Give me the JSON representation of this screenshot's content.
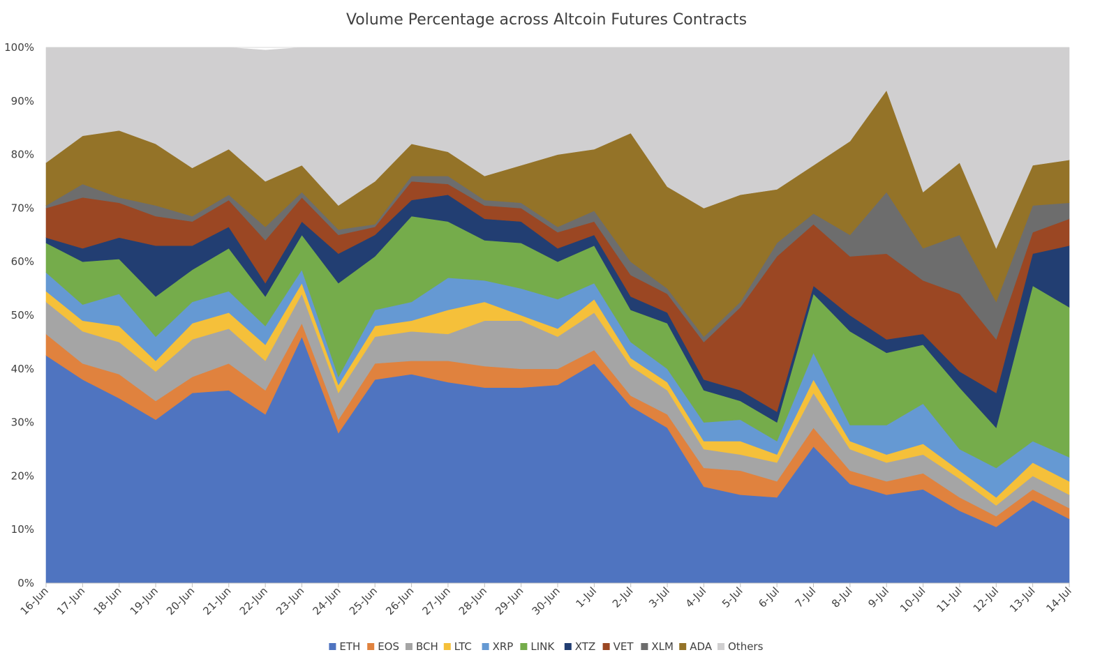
{
  "chart_data": {
    "type": "area",
    "stacked": true,
    "title": "Volume Percentage across Altcoin Futures Contracts",
    "xlabel": "",
    "ylabel": "",
    "ylim": [
      0,
      100
    ],
    "y_ticks": [
      "0%",
      "10%",
      "20%",
      "30%",
      "40%",
      "50%",
      "60%",
      "70%",
      "80%",
      "90%",
      "100%"
    ],
    "legend_position": "bottom",
    "categories": [
      "16-Jun",
      "17-Jun",
      "18-Jun",
      "19-Jun",
      "20-Jun",
      "21-Jun",
      "22-Jun",
      "23-Jun",
      "24-Jun",
      "25-Jun",
      "26-Jun",
      "27-Jun",
      "28-Jun",
      "29-Jun",
      "30-Jun",
      "1-Jul",
      "2-Jul",
      "3-Jul",
      "4-Jul",
      "5-Jul",
      "6-Jul",
      "7-Jul",
      "8-Jul",
      "9-Jul",
      "10-Jul",
      "11-Jul",
      "12-Jul",
      "13-Jul",
      "14-Jul"
    ],
    "series": [
      {
        "name": "ETH",
        "color": "#4f74c0",
        "values": [
          42.5,
          38.0,
          34.5,
          30.5,
          35.5,
          36.0,
          31.5,
          46.0,
          28.0,
          38.0,
          39.0,
          37.5,
          36.5,
          36.5,
          37.0,
          41.0,
          33.0,
          29.0,
          18.0,
          16.5,
          16.0,
          25.5,
          18.5,
          16.5,
          17.5,
          13.5,
          10.5,
          15.5,
          12.0
        ]
      },
      {
        "name": "EOS",
        "color": "#e0823e",
        "values": [
          4.0,
          3.0,
          4.5,
          3.5,
          3.0,
          5.0,
          4.5,
          2.5,
          2.5,
          3.0,
          2.5,
          4.0,
          4.0,
          3.5,
          3.0,
          2.5,
          2.0,
          2.5,
          3.5,
          4.5,
          3.0,
          3.5,
          2.5,
          2.5,
          3.0,
          2.5,
          2.0,
          2.0,
          2.0
        ]
      },
      {
        "name": "BCH",
        "color": "#a5a5a5",
        "values": [
          6.0,
          6.0,
          6.0,
          5.5,
          7.0,
          6.5,
          5.5,
          5.5,
          5.0,
          5.0,
          5.5,
          5.0,
          8.5,
          9.0,
          6.0,
          7.0,
          5.5,
          4.5,
          3.5,
          3.0,
          3.5,
          6.5,
          4.0,
          3.5,
          3.5,
          3.5,
          2.0,
          2.5,
          2.5
        ]
      },
      {
        "name": "LTC",
        "color": "#f5c03a",
        "values": [
          2.0,
          2.0,
          3.0,
          2.0,
          3.0,
          3.0,
          3.0,
          2.0,
          1.5,
          2.0,
          2.0,
          4.5,
          3.5,
          1.0,
          1.5,
          2.5,
          1.5,
          1.5,
          1.5,
          2.5,
          1.5,
          2.5,
          1.5,
          1.5,
          2.0,
          1.5,
          1.5,
          2.5,
          2.5
        ]
      },
      {
        "name": "XRP",
        "color": "#6599d3",
        "values": [
          3.5,
          3.0,
          6.0,
          4.5,
          4.0,
          4.0,
          3.5,
          2.5,
          1.5,
          3.0,
          3.5,
          6.0,
          4.0,
          5.0,
          5.5,
          3.0,
          3.0,
          2.5,
          3.5,
          4.0,
          2.5,
          5.0,
          3.0,
          5.5,
          7.5,
          4.0,
          5.5,
          4.0,
          4.5
        ]
      },
      {
        "name": "LINK",
        "color": "#75ac4b",
        "values": [
          5.5,
          8.0,
          6.5,
          7.5,
          6.0,
          8.0,
          5.5,
          6.5,
          17.5,
          10.0,
          16.0,
          10.5,
          7.5,
          8.5,
          7.0,
          7.0,
          6.0,
          8.5,
          6.0,
          3.5,
          3.5,
          11.0,
          17.5,
          13.5,
          11.0,
          11.5,
          7.5,
          29.0,
          28.0
        ]
      },
      {
        "name": "XTZ",
        "color": "#223e72",
        "values": [
          1.0,
          2.5,
          4.0,
          9.5,
          4.5,
          4.0,
          2.5,
          2.5,
          5.5,
          4.0,
          3.0,
          5.0,
          4.0,
          4.0,
          2.5,
          2.0,
          2.5,
          2.0,
          2.0,
          2.0,
          2.0,
          1.5,
          3.0,
          2.5,
          2.0,
          3.0,
          6.5,
          6.0,
          11.5
        ]
      },
      {
        "name": "VET",
        "color": "#9b4723",
        "values": [
          5.5,
          9.5,
          6.5,
          5.5,
          4.5,
          5.0,
          8.0,
          4.5,
          3.5,
          1.5,
          3.5,
          2.0,
          2.5,
          2.5,
          3.0,
          2.5,
          4.0,
          3.5,
          7.0,
          15.5,
          29.0,
          11.5,
          11.0,
          16.0,
          10.0,
          14.5,
          10.0,
          4.0,
          5.0
        ]
      },
      {
        "name": "XLM",
        "color": "#6d6d6d",
        "values": [
          0.5,
          2.5,
          1.0,
          2.0,
          1.0,
          1.0,
          2.5,
          1.0,
          1.0,
          0.5,
          1.0,
          1.5,
          1.0,
          1.0,
          1.0,
          2.0,
          2.5,
          1.0,
          1.0,
          1.0,
          2.5,
          2.0,
          4.0,
          11.5,
          6.0,
          11.0,
          7.0,
          5.0,
          3.0
        ]
      },
      {
        "name": "ADA",
        "color": "#947328",
        "values": [
          8.0,
          9.0,
          12.5,
          11.5,
          9.0,
          8.5,
          8.5,
          5.0,
          4.5,
          8.0,
          6.0,
          4.5,
          4.5,
          7.0,
          13.5,
          11.5,
          24.0,
          19.0,
          24.0,
          20.0,
          10.0,
          9.0,
          17.5,
          19.0,
          10.5,
          13.5,
          10.0,
          7.5,
          8.0
        ]
      },
      {
        "name": "Others",
        "color": "#d0cfd0",
        "values": [
          21.5,
          16.5,
          15.5,
          18.0,
          22.5,
          19.0,
          24.5,
          22.0,
          29.5,
          25.0,
          18.0,
          19.5,
          24.0,
          22.0,
          20.0,
          19.0,
          16.0,
          26.0,
          30.0,
          27.5,
          26.5,
          22.0,
          17.5,
          8.5,
          27.0,
          21.5,
          37.5,
          22.0,
          21.0
        ]
      }
    ]
  }
}
